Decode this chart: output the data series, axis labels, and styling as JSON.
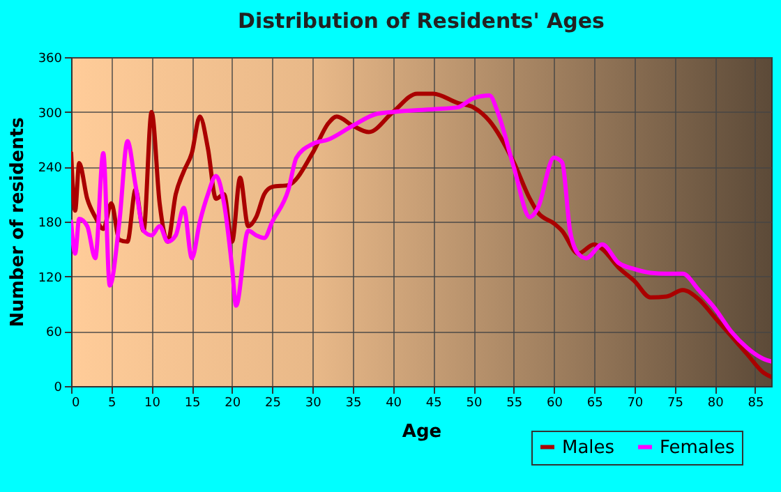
{
  "chart_data": {
    "type": "line",
    "title": "Distribution of Residents' Ages",
    "xlabel": "Age",
    "ylabel": "Number of residents",
    "xlim": [
      0,
      87
    ],
    "xticks": [
      0,
      5,
      10,
      15,
      20,
      25,
      30,
      35,
      40,
      45,
      50,
      55,
      60,
      65,
      70,
      75,
      80,
      85
    ],
    "ylim": [
      0,
      360
    ],
    "yticks": [
      0,
      60,
      120,
      180,
      240,
      300,
      360
    ],
    "grid": true,
    "legend": "bottom right",
    "series": [
      {
        "name": "Males",
        "color": "#aa0000",
        "x": [
          0,
          0.5,
          1,
          2,
          3,
          4,
          5,
          6,
          7,
          8,
          9,
          10,
          11,
          12,
          13,
          14,
          15,
          16,
          17,
          18,
          19,
          20,
          21,
          22,
          23,
          24,
          25,
          27,
          30,
          32,
          33,
          35,
          37,
          40,
          43,
          45,
          48,
          50,
          52,
          55,
          57,
          58,
          60,
          61,
          63,
          65,
          66,
          68,
          70,
          72,
          74,
          76,
          78,
          80,
          82,
          84,
          86,
          87
        ],
        "values": [
          255,
          192,
          244,
          205,
          185,
          172,
          200,
          160,
          158,
          215,
          170,
          300,
          200,
          158,
          210,
          235,
          255,
          295,
          260,
          205,
          210,
          158,
          228,
          175,
          185,
          210,
          218,
          220,
          255,
          288,
          295,
          285,
          278,
          300,
          320,
          320,
          310,
          305,
          290,
          245,
          205,
          190,
          178,
          170,
          145,
          155,
          150,
          130,
          115,
          97,
          98,
          105,
          95,
          75,
          55,
          35,
          15,
          10
        ]
      },
      {
        "name": "Females",
        "color": "#ff00ff",
        "x": [
          0,
          0.5,
          1,
          2,
          3,
          4,
          4.8,
          6,
          7,
          8,
          9,
          10,
          11,
          12,
          13,
          14,
          15,
          16,
          17,
          18,
          19,
          20,
          20.5,
          22,
          23,
          24,
          25,
          27,
          28,
          30,
          32,
          35,
          38,
          40,
          45,
          48,
          50,
          52,
          53,
          55,
          57,
          58,
          60,
          61,
          62,
          63,
          64,
          66,
          68,
          70,
          72,
          74,
          76,
          78,
          80,
          82,
          84,
          86,
          87
        ],
        "values": [
          180,
          145,
          183,
          175,
          140,
          255,
          110,
          180,
          268,
          220,
          170,
          165,
          175,
          158,
          165,
          195,
          140,
          180,
          210,
          230,
          200,
          130,
          88,
          170,
          165,
          162,
          180,
          215,
          250,
          265,
          270,
          285,
          298,
          300,
          303,
          305,
          315,
          318,
          300,
          240,
          185,
          195,
          250,
          245,
          170,
          145,
          140,
          155,
          135,
          128,
          124,
          123,
          123,
          105,
          85,
          60,
          42,
          30,
          27
        ]
      }
    ]
  }
}
